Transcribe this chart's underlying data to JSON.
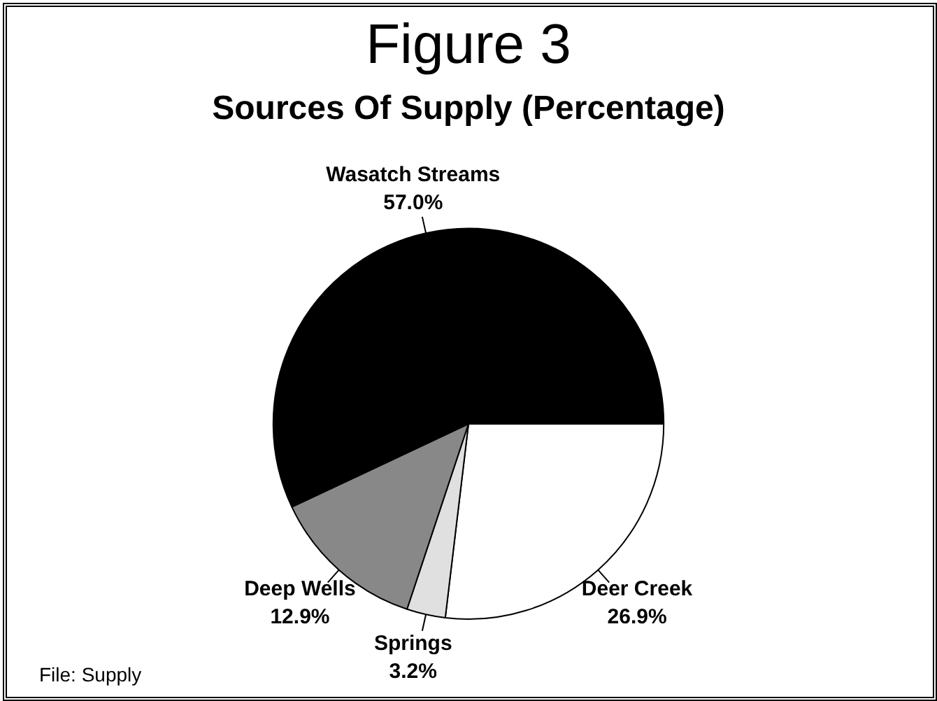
{
  "chart_data": {
    "type": "pie",
    "title": "Figure 3",
    "subtitle": "Sources Of Supply (Percentage)",
    "categories": [
      "Deer Creek",
      "Springs",
      "Deep Wells",
      "Wasatch Streams"
    ],
    "values": [
      26.9,
      3.2,
      12.9,
      57.0
    ],
    "value_labels": [
      "26.9%",
      "3.2%",
      "12.9%",
      "57.0%"
    ],
    "colors": [
      "#ffffff",
      "#e0e0e0",
      "#888888",
      "#000000"
    ],
    "annotations": [
      "File: Supply"
    ],
    "legend": false
  }
}
